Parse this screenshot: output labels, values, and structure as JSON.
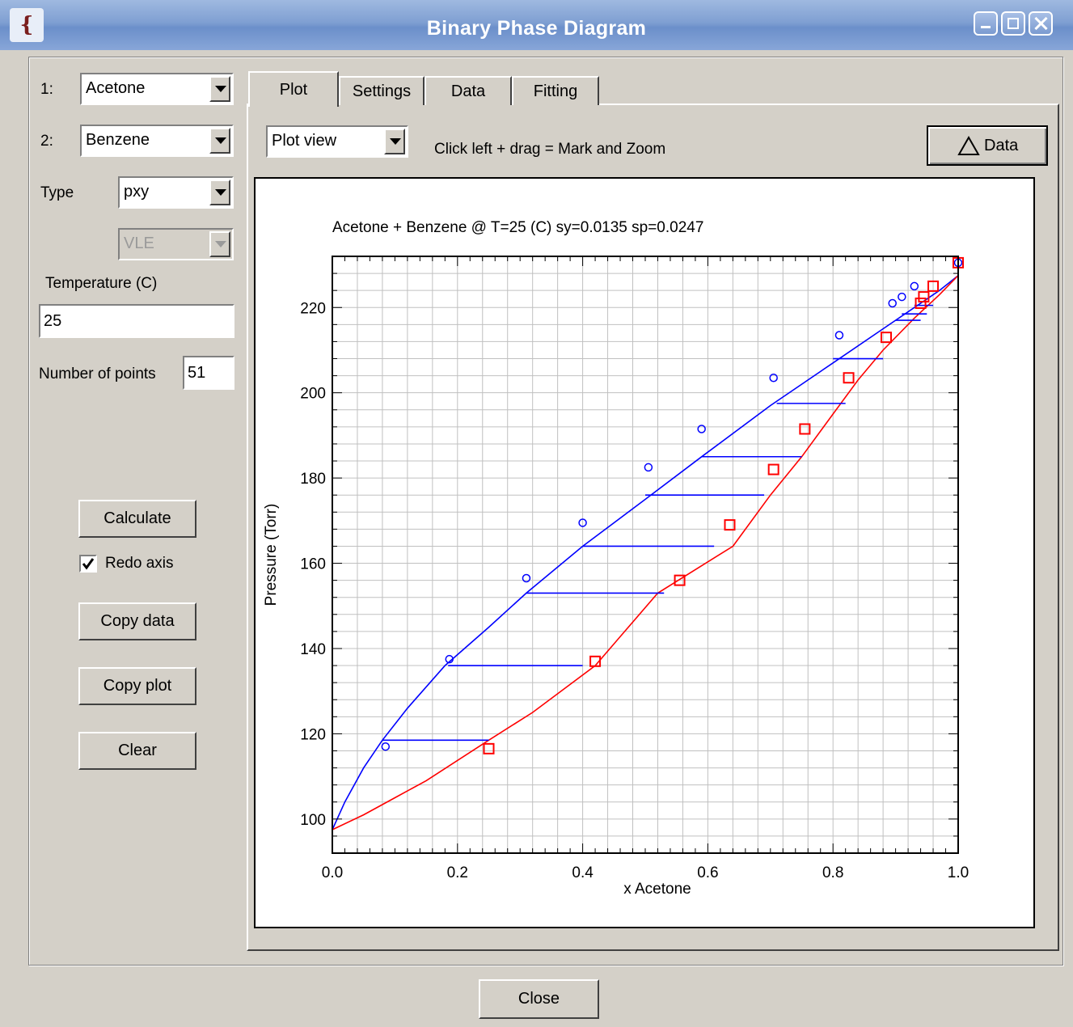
{
  "window": {
    "title": "Binary Phase Diagram",
    "logo_text": "{"
  },
  "left_panel": {
    "component1_label": "1:",
    "component1_value": "Acetone",
    "component2_label": "2:",
    "component2_value": "Benzene",
    "type_label": "Type",
    "type_value": "pxy",
    "subtype_value": "VLE",
    "temperature_label": "Temperature (C)",
    "temperature_value": "25",
    "points_label": "Number of points",
    "points_value": "51",
    "calculate_label": "Calculate",
    "redo_axis_label": "Redo axis",
    "redo_axis_checked": true,
    "copy_data_label": "Copy data",
    "copy_plot_label": "Copy plot",
    "clear_label": "Clear"
  },
  "tabs": [
    {
      "label": "Plot"
    },
    {
      "label": "Settings"
    },
    {
      "label": "Data"
    },
    {
      "label": "Fitting"
    }
  ],
  "plot_toolbar": {
    "view_value": "Plot view",
    "hint": "Click left + drag = Mark and Zoom",
    "data_button_label": "Data",
    "data_button_icon": "triangle-icon"
  },
  "footer": {
    "close_label": "Close"
  },
  "colors": {
    "vapor": "#0000ff",
    "liquid": "#ff0000",
    "grid": "#c0c0c0"
  },
  "chart_data": {
    "type": "line",
    "title": "Acetone + Benzene @ T=25 (C) sy=0.0135 sp=0.0247",
    "xlabel": "x Acetone",
    "ylabel": "Pressure (Torr)",
    "xlim": [
      0,
      1
    ],
    "ylim": [
      92,
      232
    ],
    "x_ticks": [
      "0.0",
      "0.2",
      "0.4",
      "0.6",
      "0.8",
      "1.0"
    ],
    "y_ticks": [
      "100",
      "120",
      "140",
      "160",
      "180",
      "200",
      "220"
    ],
    "grid": true,
    "series": [
      {
        "color": "#0000ff",
        "kind": "line",
        "x": [
          0.0,
          0.02,
          0.05,
          0.08,
          0.12,
          0.18,
          0.25,
          0.31,
          0.4,
          0.5,
          0.59,
          0.7,
          0.8,
          0.88,
          0.93,
          0.97,
          1.0
        ],
        "y": [
          97.5,
          104,
          112,
          118.5,
          126,
          136,
          145,
          153,
          164,
          175,
          185,
          197,
          207,
          215,
          220,
          224,
          227.5
        ]
      },
      {
        "color": "#ff0000",
        "kind": "line",
        "x": [
          0.0,
          0.05,
          0.1,
          0.15,
          0.25,
          0.32,
          0.42,
          0.52,
          0.64,
          0.7,
          0.75,
          0.8,
          0.84,
          0.88,
          0.93,
          0.97,
          1.0
        ],
        "y": [
          97.5,
          101,
          105,
          109,
          118.5,
          125,
          136,
          153,
          164,
          176,
          185,
          195,
          203,
          210,
          217.5,
          223,
          227.5
        ]
      },
      {
        "color": "#0000ff",
        "kind": "tielines",
        "x": [
          [
            0.08,
            0.25
          ],
          [
            0.185,
            0.4
          ],
          [
            0.31,
            0.53
          ],
          [
            0.4,
            0.61
          ],
          [
            0.5,
            0.69
          ],
          [
            0.59,
            0.75
          ],
          [
            0.71,
            0.82
          ],
          [
            0.8,
            0.88
          ],
          [
            0.9,
            0.94
          ],
          [
            0.91,
            0.95
          ],
          [
            0.93,
            0.96
          ]
        ],
        "y": [
          118.5,
          136,
          153,
          164,
          176,
          185,
          197.5,
          208,
          217,
          218.5,
          220.5
        ]
      },
      {
        "color": "#0000ff",
        "kind": "scatter-circle",
        "x": [
          0.085,
          0.187,
          0.31,
          0.4,
          0.505,
          0.59,
          0.705,
          0.81,
          0.895,
          0.91,
          0.93,
          1.0
        ],
        "y": [
          117,
          137.5,
          156.5,
          169.5,
          182.5,
          191.5,
          203.5,
          213.5,
          221,
          222.5,
          225,
          230.5
        ]
      },
      {
        "color": "#ff0000",
        "kind": "scatter-square",
        "x": [
          0.25,
          0.42,
          0.555,
          0.635,
          0.705,
          0.755,
          0.825,
          0.885,
          0.94,
          0.945,
          0.96,
          1.0
        ],
        "y": [
          116.5,
          137,
          156,
          169,
          182,
          191.5,
          203.5,
          213,
          221,
          222.5,
          225,
          230.5
        ]
      }
    ]
  }
}
